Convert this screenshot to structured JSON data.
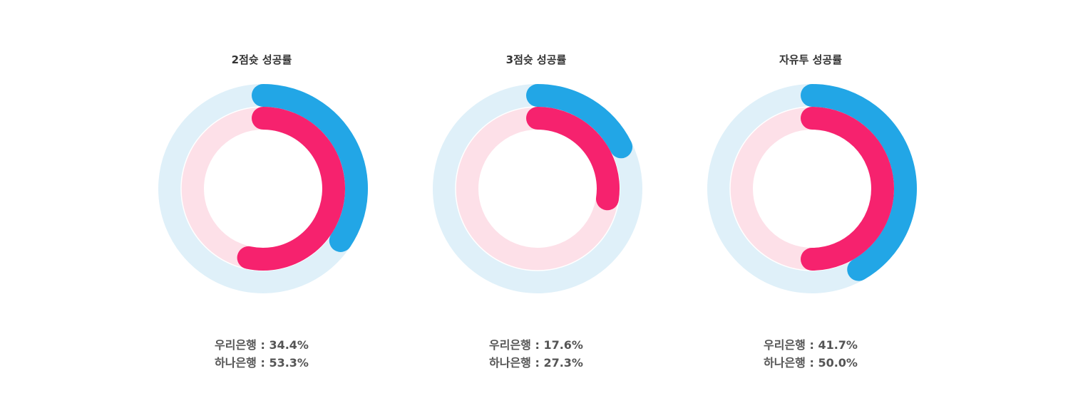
{
  "colors": {
    "woori": "#22a6e6",
    "woori_track": "#dff0f9",
    "hana": "#f6226e",
    "hana_track": "#fde0e8"
  },
  "separator": " : ",
  "chart_data": [
    {
      "type": "radial-bar",
      "title": "2점슛 성공률",
      "max": 100,
      "series": [
        {
          "name": "우리은행",
          "value": 34.4,
          "label": "34.4%"
        },
        {
          "name": "하나은행",
          "value": 53.3,
          "label": "53.3%"
        }
      ]
    },
    {
      "type": "radial-bar",
      "title": "3점슛 성공률",
      "max": 100,
      "series": [
        {
          "name": "우리은행",
          "value": 17.6,
          "label": "17.6%"
        },
        {
          "name": "하나은행",
          "value": 27.3,
          "label": "27.3%"
        }
      ]
    },
    {
      "type": "radial-bar",
      "title": "자유투 성공률",
      "max": 100,
      "series": [
        {
          "name": "우리은행",
          "value": 41.7,
          "label": "41.7%"
        },
        {
          "name": "하나은행",
          "value": 50.0,
          "label": "50.0%"
        }
      ]
    }
  ]
}
